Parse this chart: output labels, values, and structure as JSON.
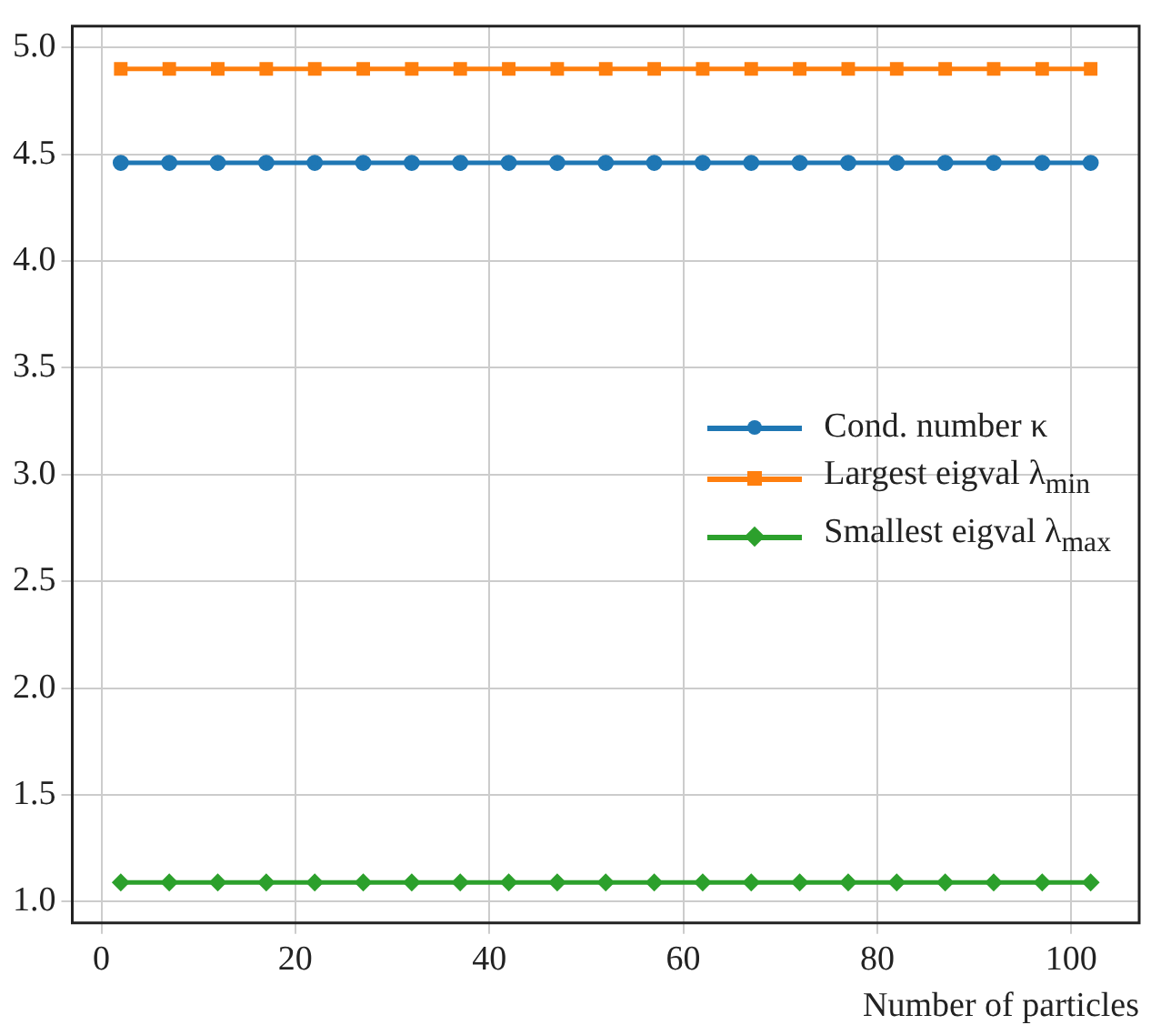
{
  "chart_data": {
    "type": "line",
    "xlabel": "Number of particles",
    "x": [
      2,
      7,
      12,
      17,
      22,
      27,
      32,
      37,
      42,
      47,
      52,
      57,
      62,
      67,
      72,
      77,
      82,
      87,
      92,
      97,
      102
    ],
    "series": [
      {
        "name": "Cond. number κ",
        "color": "#1f77b4",
        "marker": "circle",
        "values": [
          4.46,
          4.46,
          4.46,
          4.46,
          4.46,
          4.46,
          4.46,
          4.46,
          4.46,
          4.46,
          4.46,
          4.46,
          4.46,
          4.46,
          4.46,
          4.46,
          4.46,
          4.46,
          4.46,
          4.46,
          4.46
        ]
      },
      {
        "name": "Largest eigval λ$_{min}$",
        "color": "#ff7f0e",
        "marker": "square",
        "values": [
          4.9,
          4.9,
          4.9,
          4.9,
          4.9,
          4.9,
          4.9,
          4.9,
          4.9,
          4.9,
          4.9,
          4.9,
          4.9,
          4.9,
          4.9,
          4.9,
          4.9,
          4.9,
          4.9,
          4.9,
          4.9
        ]
      },
      {
        "name": "Smallest eigval λ$_{max}$",
        "color": "#2ca02c",
        "marker": "diamond",
        "values": [
          1.09,
          1.09,
          1.09,
          1.09,
          1.09,
          1.09,
          1.09,
          1.09,
          1.09,
          1.09,
          1.09,
          1.09,
          1.09,
          1.09,
          1.09,
          1.09,
          1.09,
          1.09,
          1.09,
          1.09,
          1.09
        ]
      }
    ],
    "xlim": [
      -3,
      107
    ],
    "xticks": [
      0,
      20,
      40,
      60,
      80,
      100
    ],
    "ylim": [
      0.9,
      5.1
    ],
    "yticks": [
      {
        "value": 1,
        "label": "1.0"
      },
      1.5,
      {
        "value": 2,
        "label": "2.0"
      },
      2.5,
      {
        "value": 3,
        "label": "3.0"
      },
      3.5,
      {
        "value": 4,
        "label": "4.0"
      },
      4.5,
      {
        "value": 5,
        "label": "5.0"
      }
    ],
    "grid": true,
    "legend": "right",
    "line_style": "solid"
  }
}
